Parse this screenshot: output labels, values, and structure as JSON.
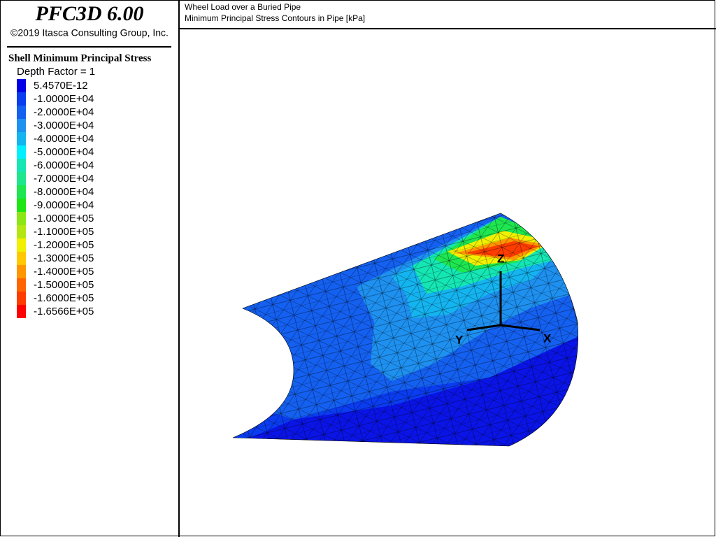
{
  "header": {
    "title": "PFC3D 6.00",
    "copyright": "©2019 Itasca Consulting Group, Inc."
  },
  "legend": {
    "title": "Shell Minimum Principal Stress",
    "depth_factor": "Depth Factor = 1",
    "items": [
      {
        "label": "5.4570E-12",
        "color": "#0000e6"
      },
      {
        "label": "-1.0000E+04",
        "color": "#0a3cf0"
      },
      {
        "label": "-2.0000E+04",
        "color": "#1460f0"
      },
      {
        "label": "-3.0000E+04",
        "color": "#1e90f0"
      },
      {
        "label": "-4.0000E+04",
        "color": "#14b4f0"
      },
      {
        "label": "-5.0000E+04",
        "color": "#00f0ff"
      },
      {
        "label": "-6.0000E+04",
        "color": "#14e6b4"
      },
      {
        "label": "-7.0000E+04",
        "color": "#1ee68c"
      },
      {
        "label": "-8.0000E+04",
        "color": "#1ee650"
      },
      {
        "label": "-9.0000E+04",
        "color": "#1ee614"
      },
      {
        "label": "-1.0000E+05",
        "color": "#8ce614"
      },
      {
        "label": "-1.1000E+05",
        "color": "#b4e614"
      },
      {
        "label": "-1.2000E+05",
        "color": "#f0f000"
      },
      {
        "label": "-1.3000E+05",
        "color": "#ffc800"
      },
      {
        "label": "-1.4000E+05",
        "color": "#ff9600"
      },
      {
        "label": "-1.5000E+05",
        "color": "#ff6400"
      },
      {
        "label": "-1.6000E+05",
        "color": "#ff3c00"
      },
      {
        "label": "-1.6566E+05",
        "color": "#ff0000"
      }
    ]
  },
  "plot": {
    "title": "Wheel Load over a Buried Pipe",
    "subtitle": "Minimum Principal Stress Contours in Pipe [kPa]",
    "axes": {
      "z": "Z",
      "y": "Y",
      "x": "X"
    }
  }
}
